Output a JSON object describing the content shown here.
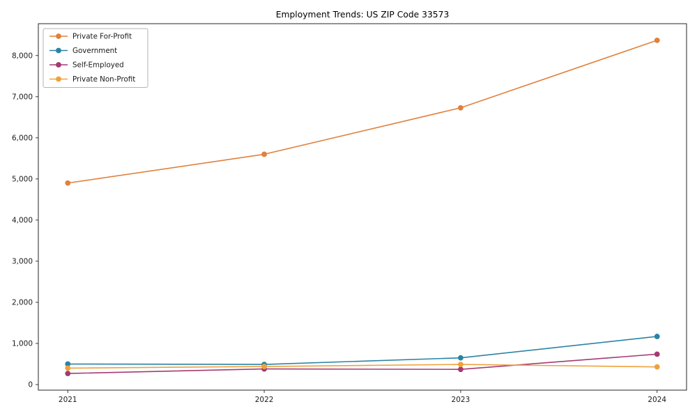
{
  "figure": {
    "background_color": "#ffffff",
    "axes_color": "#262626"
  },
  "chart_data": {
    "type": "line",
    "title": "Employment Trends: US ZIP Code 33573",
    "xlabel": "",
    "ylabel": "",
    "x": [
      2021,
      2022,
      2023,
      2024
    ],
    "x_tick_labels": [
      "2021",
      "2022",
      "2023",
      "2024"
    ],
    "series": [
      {
        "name": "Private For-Profit",
        "color": "#e0813c",
        "values": [
          4900,
          5600,
          6730,
          8370
        ]
      },
      {
        "name": "Government",
        "color": "#2a83a2",
        "values": [
          500,
          490,
          650,
          1170
        ]
      },
      {
        "name": "Self-Employed",
        "color": "#a43a73",
        "values": [
          270,
          380,
          370,
          740
        ]
      },
      {
        "name": "Private Non-Profit",
        "color": "#efa13c",
        "values": [
          400,
          440,
          490,
          430
        ]
      }
    ],
    "y_ticks": [
      0,
      1000,
      2000,
      3000,
      4000,
      5000,
      6000,
      7000,
      8000
    ],
    "y_tick_labels": [
      "0",
      "1,000",
      "2,000",
      "3,000",
      "4,000",
      "5,000",
      "6,000",
      "7,000",
      "8,000"
    ],
    "xlim": [
      2020.85,
      2024.15
    ],
    "ylim": [
      -135,
      8775
    ],
    "grid": false,
    "marker": "circle",
    "legend": {
      "position": "upper-left",
      "labels": [
        "Private For-Profit",
        "Government",
        "Self-Employed",
        "Private Non-Profit"
      ]
    }
  }
}
